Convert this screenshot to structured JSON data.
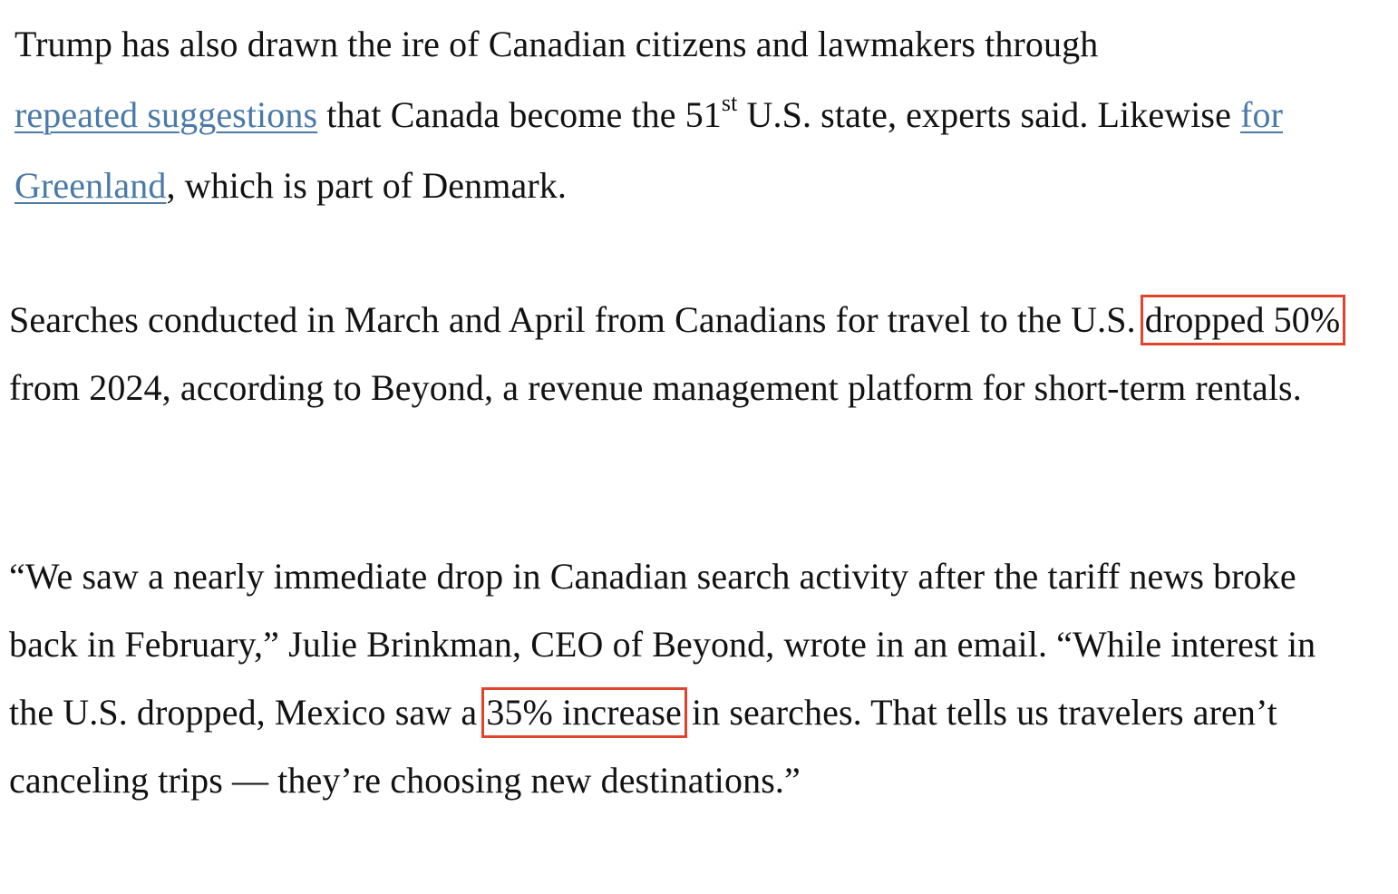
{
  "paragraph1": {
    "s1": "Trump has also drawn the ire of Canadian citizens and lawmakers through ",
    "link1": "repeated suggestions",
    "s2": " that Canada become the 51",
    "sup": "st",
    "s3": " U.S. state, experts said. Likewise ",
    "link2": "for Greenland",
    "s4": ", which is part of Denmark."
  },
  "paragraph2": {
    "s1": "Searches conducted in March and April from Canadians for travel to the U.S. ",
    "highlight": "dropped 50%",
    "s2": " from 2024, according to Beyond, a revenue management platform for short-term rentals."
  },
  "paragraph3": {
    "s1": "“We saw a nearly immediate drop in Canadian search activity after the tariff news broke back in February,” Julie Brinkman, CEO of Beyond, wrote in an email. “While interest in the U.S. dropped, Mexico saw a ",
    "highlight": "35% increase",
    "s2": " in searches. That tells us travelers aren’t canceling trips — they’re choosing new destinations.”"
  },
  "colors": {
    "link": "#4a7aa8",
    "highlight_border": "#e0442c",
    "text": "#121212"
  }
}
